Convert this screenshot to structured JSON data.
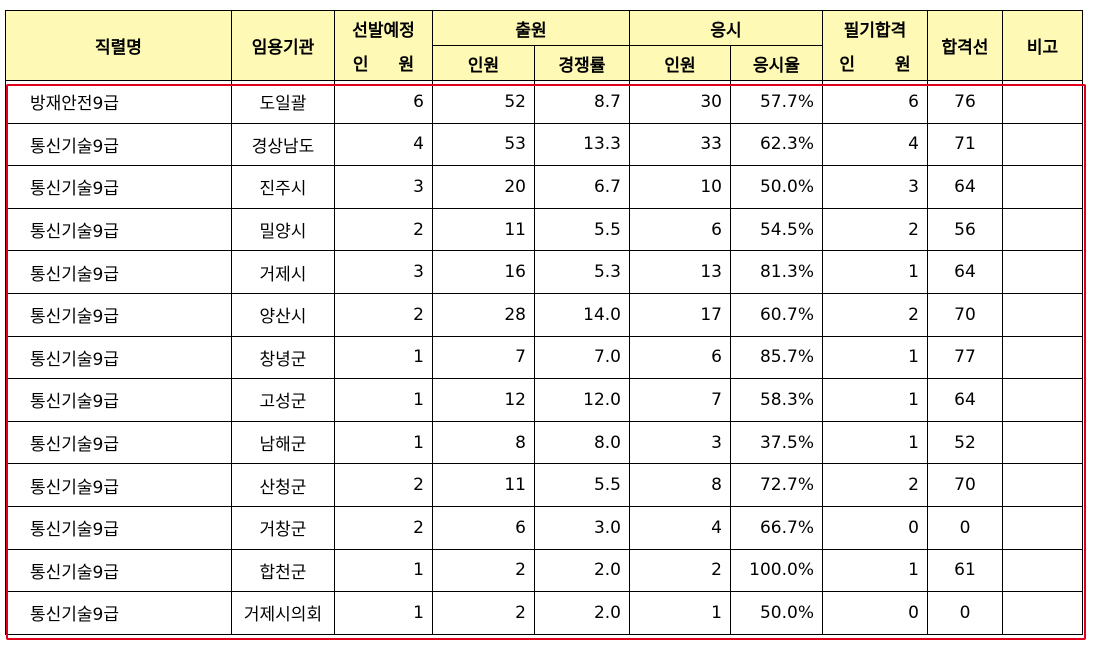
{
  "header": {
    "col_title": "직렬명",
    "col_agency": "임용기관",
    "col_planned_top": "선발예정",
    "col_planned_bottom_a": "인",
    "col_planned_bottom_b": "원",
    "group_apply": "출원",
    "group_exam": "응시",
    "group_written": "필기합격",
    "col_cutoff": "합격선",
    "col_note": "비고",
    "apply_count": "인원",
    "apply_rate": "경쟁률",
    "exam_count": "인원",
    "exam_rate": "응시율",
    "written_a": "인",
    "written_b": "원"
  },
  "rows": [
    {
      "title": "방재안전9급",
      "agency": "도일괄",
      "planned": "6",
      "apply_count": "52",
      "apply_rate": "8.7",
      "exam_count": "30",
      "exam_rate": "57.7%",
      "passed": "6",
      "cutoff": "76",
      "note": ""
    },
    {
      "title": "통신기술9급",
      "agency": "경상남도",
      "planned": "4",
      "apply_count": "53",
      "apply_rate": "13.3",
      "exam_count": "33",
      "exam_rate": "62.3%",
      "passed": "4",
      "cutoff": "71",
      "note": ""
    },
    {
      "title": "통신기술9급",
      "agency": "진주시",
      "planned": "3",
      "apply_count": "20",
      "apply_rate": "6.7",
      "exam_count": "10",
      "exam_rate": "50.0%",
      "passed": "3",
      "cutoff": "64",
      "note": ""
    },
    {
      "title": "통신기술9급",
      "agency": "밀양시",
      "planned": "2",
      "apply_count": "11",
      "apply_rate": "5.5",
      "exam_count": "6",
      "exam_rate": "54.5%",
      "passed": "2",
      "cutoff": "56",
      "note": ""
    },
    {
      "title": "통신기술9급",
      "agency": "거제시",
      "planned": "3",
      "apply_count": "16",
      "apply_rate": "5.3",
      "exam_count": "13",
      "exam_rate": "81.3%",
      "passed": "1",
      "cutoff": "64",
      "note": ""
    },
    {
      "title": "통신기술9급",
      "agency": "양산시",
      "planned": "2",
      "apply_count": "28",
      "apply_rate": "14.0",
      "exam_count": "17",
      "exam_rate": "60.7%",
      "passed": "2",
      "cutoff": "70",
      "note": ""
    },
    {
      "title": "통신기술9급",
      "agency": "창녕군",
      "planned": "1",
      "apply_count": "7",
      "apply_rate": "7.0",
      "exam_count": "6",
      "exam_rate": "85.7%",
      "passed": "1",
      "cutoff": "77",
      "note": ""
    },
    {
      "title": "통신기술9급",
      "agency": "고성군",
      "planned": "1",
      "apply_count": "12",
      "apply_rate": "12.0",
      "exam_count": "7",
      "exam_rate": "58.3%",
      "passed": "1",
      "cutoff": "64",
      "note": ""
    },
    {
      "title": "통신기술9급",
      "agency": "남해군",
      "planned": "1",
      "apply_count": "8",
      "apply_rate": "8.0",
      "exam_count": "3",
      "exam_rate": "37.5%",
      "passed": "1",
      "cutoff": "52",
      "note": ""
    },
    {
      "title": "통신기술9급",
      "agency": "산청군",
      "planned": "2",
      "apply_count": "11",
      "apply_rate": "5.5",
      "exam_count": "8",
      "exam_rate": "72.7%",
      "passed": "2",
      "cutoff": "70",
      "note": ""
    },
    {
      "title": "통신기술9급",
      "agency": "거창군",
      "planned": "2",
      "apply_count": "6",
      "apply_rate": "3.0",
      "exam_count": "4",
      "exam_rate": "66.7%",
      "passed": "0",
      "cutoff": "0",
      "note": ""
    },
    {
      "title": "통신기술9급",
      "agency": "합천군",
      "planned": "1",
      "apply_count": "2",
      "apply_rate": "2.0",
      "exam_count": "2",
      "exam_rate": "100.0%",
      "passed": "1",
      "cutoff": "61",
      "note": ""
    },
    {
      "title": "통신기술9급",
      "agency": "거제시의회",
      "planned": "1",
      "apply_count": "2",
      "apply_rate": "2.0",
      "exam_count": "1",
      "exam_rate": "50.0%",
      "passed": "0",
      "cutoff": "0",
      "note": ""
    }
  ],
  "colors": {
    "header_bg": "#fef9b4",
    "highlight_border": "#e0001b"
  }
}
